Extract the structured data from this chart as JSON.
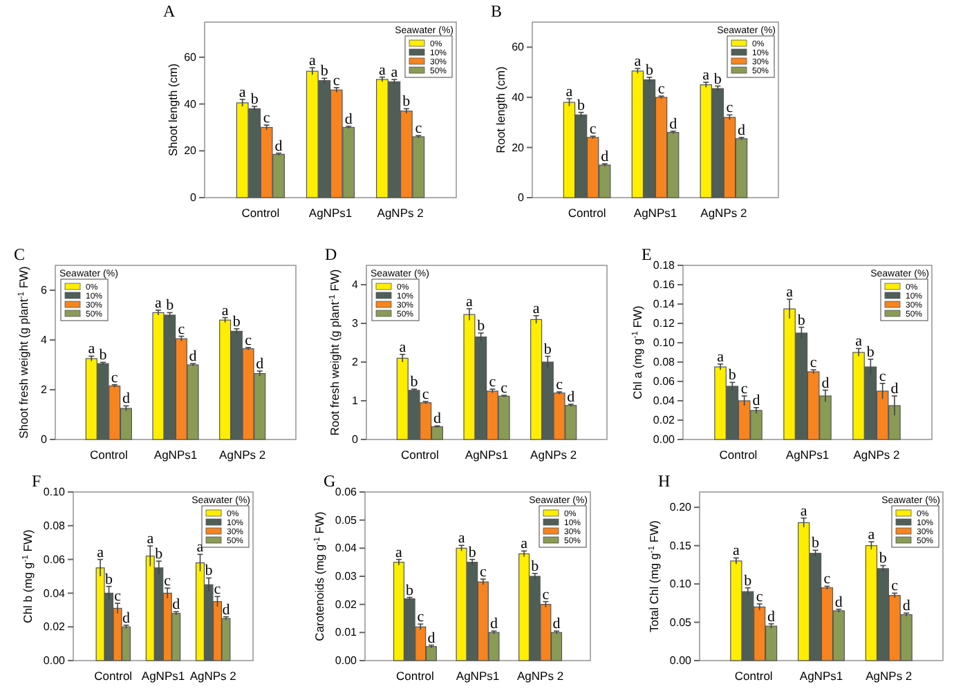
{
  "chart_data": [
    {
      "type": "bar",
      "title": "A",
      "ylabel": "Shoot length (cm)",
      "legend_title": "Seawater (%)",
      "legend": "top right",
      "categories": [
        "Control",
        "AgNPs1",
        "AgNPs 2"
      ],
      "ylim": [
        0,
        75
      ],
      "yticks": [
        0,
        20,
        40,
        60
      ],
      "series": [
        {
          "name": "0%",
          "color": "#ffee00",
          "values": [
            40.5,
            54,
            50.5
          ],
          "errors": [
            1.5,
            1.5,
            1
          ],
          "value_labels": [
            "a",
            "a",
            "a"
          ]
        },
        {
          "name": "10%",
          "color": "#4f5f58",
          "values": [
            38,
            50,
            49.5
          ],
          "errors": [
            1,
            1,
            1
          ],
          "value_labels": [
            "b",
            "b",
            "a"
          ]
        },
        {
          "name": "30%",
          "color": "#f7841f",
          "values": [
            30,
            46,
            37
          ],
          "errors": [
            1,
            1,
            1
          ],
          "value_labels": [
            "c",
            "c",
            "b"
          ]
        },
        {
          "name": "50%",
          "color": "#8a9b55",
          "values": [
            18.5,
            30,
            26
          ],
          "errors": [
            0.5,
            0.5,
            0.5
          ],
          "value_labels": [
            "d",
            "d",
            "c"
          ]
        }
      ]
    },
    {
      "type": "bar",
      "title": "B",
      "ylabel": "Root length (cm)",
      "legend_title": "Seawater (%)",
      "legend": "top right",
      "categories": [
        "Control",
        "AgNPs1",
        "AgNPs 2"
      ],
      "ylim": [
        0,
        70
      ],
      "yticks": [
        0,
        20,
        40,
        60
      ],
      "series": [
        {
          "name": "0%",
          "color": "#ffee00",
          "values": [
            38,
            50.5,
            45
          ],
          "errors": [
            1.5,
            1,
            1
          ],
          "value_labels": [
            "a",
            "a",
            "a"
          ]
        },
        {
          "name": "10%",
          "color": "#4f5f58",
          "values": [
            33,
            47,
            43.5
          ],
          "errors": [
            1,
            1,
            1
          ],
          "value_labels": [
            "b",
            "b",
            "b"
          ]
        },
        {
          "name": "30%",
          "color": "#f7841f",
          "values": [
            24,
            40,
            32
          ],
          "errors": [
            0.5,
            0.5,
            1
          ],
          "value_labels": [
            "c",
            "c",
            "c"
          ]
        },
        {
          "name": "50%",
          "color": "#8a9b55",
          "values": [
            13,
            26,
            23.5
          ],
          "errors": [
            0.5,
            0.5,
            0.5
          ],
          "value_labels": [
            "d",
            "d",
            "d"
          ]
        }
      ]
    },
    {
      "type": "bar",
      "title": "C",
      "ylabel": "Shoot fresh weight (g plant$^{-1}$ FW)",
      "legend_title": "Seawater (%)",
      "legend": "top left",
      "categories": [
        "Control",
        "AgNPs1",
        "AgNPs 2"
      ],
      "ylim": [
        0,
        7
      ],
      "yticks": [
        0,
        2,
        4,
        6
      ],
      "series": [
        {
          "name": "0%",
          "color": "#ffee00",
          "values": [
            3.25,
            5.1,
            4.8
          ],
          "errors": [
            0.1,
            0.1,
            0.1
          ],
          "value_labels": [
            "a",
            "a",
            "a"
          ]
        },
        {
          "name": "10%",
          "color": "#4f5f58",
          "values": [
            3.05,
            5.0,
            4.35
          ],
          "errors": [
            0.05,
            0.1,
            0.1
          ],
          "value_labels": [
            "b",
            "b",
            "b"
          ]
        },
        {
          "name": "30%",
          "color": "#f7841f",
          "values": [
            2.15,
            4.05,
            3.65
          ],
          "errors": [
            0.05,
            0.1,
            0.05
          ],
          "value_labels": [
            "c",
            "c",
            "c"
          ]
        },
        {
          "name": "50%",
          "color": "#8a9b55",
          "values": [
            1.25,
            3.0,
            2.65
          ],
          "errors": [
            0.1,
            0.05,
            0.1
          ],
          "value_labels": [
            "d",
            "d",
            "d"
          ]
        }
      ]
    },
    {
      "type": "bar",
      "title": "D",
      "ylabel": "Root fresh weight (g plant$^{-1}$ FW)",
      "legend_title": "Seawater (%)",
      "legend": "top left",
      "categories": [
        "Control",
        "AgNPs1",
        "AgNPs 2"
      ],
      "ylim": [
        0,
        4.5
      ],
      "yticks": [
        0,
        1,
        2,
        3,
        4
      ],
      "series": [
        {
          "name": "0%",
          "color": "#ffee00",
          "values": [
            2.1,
            3.23,
            3.1
          ],
          "errors": [
            0.1,
            0.15,
            0.1
          ],
          "value_labels": [
            "a",
            "a",
            "a"
          ]
        },
        {
          "name": "10%",
          "color": "#4f5f58",
          "values": [
            1.27,
            2.65,
            2.0
          ],
          "errors": [
            0.03,
            0.1,
            0.15
          ],
          "value_labels": [
            "b",
            "b",
            "b"
          ]
        },
        {
          "name": "30%",
          "color": "#f7841f",
          "values": [
            0.95,
            1.25,
            1.2
          ],
          "errors": [
            0.03,
            0.05,
            0.03
          ],
          "value_labels": [
            "c",
            "c",
            "c"
          ]
        },
        {
          "name": "50%",
          "color": "#8a9b55",
          "values": [
            0.33,
            1.12,
            0.88
          ],
          "errors": [
            0.02,
            0.02,
            0.03
          ],
          "value_labels": [
            "d",
            "c",
            "d"
          ]
        }
      ]
    },
    {
      "type": "bar",
      "title": "E",
      "ylabel": "Chl a (mg g$^{-1}$ FW)",
      "legend_title": "Seawater (%)",
      "legend": "top right",
      "categories": [
        "Control",
        "AgNPs1",
        "AgNPs 2"
      ],
      "ylim": [
        0,
        0.18
      ],
      "yticks": [
        {
          "value": 0,
          "label": "0.00"
        },
        {
          "value": 0.02,
          "label": "0.02"
        },
        {
          "value": 0.04,
          "label": "0.04"
        },
        {
          "value": 0.06,
          "label": "0.06"
        },
        {
          "value": 0.08,
          "label": "0.08"
        },
        {
          "value": 0.1,
          "label": "0.10"
        },
        {
          "value": 0.12,
          "label": "0.12"
        },
        {
          "value": 0.14,
          "label": "0.14"
        },
        {
          "value": 0.16,
          "label": "0.16"
        },
        {
          "value": 0.18,
          "label": "0.18"
        }
      ],
      "series": [
        {
          "name": "0%",
          "color": "#ffee00",
          "values": [
            0.075,
            0.135,
            0.09
          ],
          "errors": [
            0.003,
            0.01,
            0.004
          ],
          "value_labels": [
            "a",
            "a",
            "a"
          ]
        },
        {
          "name": "10%",
          "color": "#4f5f58",
          "values": [
            0.055,
            0.11,
            0.075
          ],
          "errors": [
            0.004,
            0.006,
            0.008
          ],
          "value_labels": [
            "b",
            "b",
            "b"
          ]
        },
        {
          "name": "30%",
          "color": "#f7841f",
          "values": [
            0.04,
            0.07,
            0.05
          ],
          "errors": [
            0.005,
            0.002,
            0.008
          ],
          "value_labels": [
            "c",
            "c",
            "c"
          ]
        },
        {
          "name": "50%",
          "color": "#8a9b55",
          "values": [
            0.03,
            0.045,
            0.035
          ],
          "errors": [
            0.003,
            0.006,
            0.01
          ],
          "value_labels": [
            "d",
            "d",
            "d"
          ]
        }
      ]
    },
    {
      "type": "bar",
      "title": "F",
      "ylabel": "Chl b (mg g$^{-1}$ FW)",
      "legend_title": "Seawater (%)",
      "legend": "top right",
      "categories": [
        "Control",
        "AgNPs1",
        "AgNPs 2"
      ],
      "ylim": [
        0,
        0.1
      ],
      "yticks": [
        {
          "value": 0,
          "label": "0.00"
        },
        {
          "value": 0.02,
          "label": "0.02"
        },
        {
          "value": 0.04,
          "label": "0.04"
        },
        {
          "value": 0.06,
          "label": "0.06"
        },
        {
          "value": 0.08,
          "label": "0.08"
        },
        {
          "value": 0.1,
          "label": "0.10"
        }
      ],
      "series": [
        {
          "name": "0%",
          "color": "#ffee00",
          "values": [
            0.055,
            0.062,
            0.058
          ],
          "errors": [
            0.005,
            0.006,
            0.005
          ],
          "value_labels": [
            "a",
            "a",
            "a"
          ]
        },
        {
          "name": "10%",
          "color": "#4f5f58",
          "values": [
            0.04,
            0.055,
            0.045
          ],
          "errors": [
            0.004,
            0.004,
            0.004
          ],
          "value_labels": [
            "b",
            "b",
            "b"
          ]
        },
        {
          "name": "30%",
          "color": "#f7841f",
          "values": [
            0.031,
            0.04,
            0.035
          ],
          "errors": [
            0.003,
            0.003,
            0.003
          ],
          "value_labels": [
            "c",
            "c",
            "c"
          ]
        },
        {
          "name": "50%",
          "color": "#8a9b55",
          "values": [
            0.02,
            0.028,
            0.025
          ],
          "errors": [
            0.001,
            0.001,
            0.001
          ],
          "value_labels": [
            "d",
            "d",
            "d"
          ]
        }
      ]
    },
    {
      "type": "bar",
      "title": "G",
      "ylabel": "Carotenoids (mg g$^{-1}$ FW)",
      "legend_title": "Seawater (%)",
      "legend": "top right",
      "categories": [
        "Control",
        "AgNPs1",
        "AgNPs 2"
      ],
      "ylim": [
        0,
        0.06
      ],
      "yticks": [
        {
          "value": 0,
          "label": "0.00"
        },
        {
          "value": 0.01,
          "label": "0.01"
        },
        {
          "value": 0.02,
          "label": "0.02"
        },
        {
          "value": 0.03,
          "label": "0.03"
        },
        {
          "value": 0.04,
          "label": "0.04"
        },
        {
          "value": 0.05,
          "label": "0.05"
        },
        {
          "value": 0.06,
          "label": "0.06"
        }
      ],
      "series": [
        {
          "name": "0%",
          "color": "#ffee00",
          "values": [
            0.035,
            0.04,
            0.038
          ],
          "errors": [
            0.001,
            0.001,
            0.001
          ],
          "value_labels": [
            "a",
            "a",
            "a"
          ]
        },
        {
          "name": "10%",
          "color": "#4f5f58",
          "values": [
            0.022,
            0.035,
            0.03
          ],
          "errors": [
            0.0005,
            0.001,
            0.001
          ],
          "value_labels": [
            "b",
            "b",
            "b"
          ]
        },
        {
          "name": "30%",
          "color": "#f7841f",
          "values": [
            0.012,
            0.028,
            0.02
          ],
          "errors": [
            0.001,
            0.001,
            0.001
          ],
          "value_labels": [
            "c",
            "c",
            "c"
          ]
        },
        {
          "name": "50%",
          "color": "#8a9b55",
          "values": [
            0.005,
            0.01,
            0.01
          ],
          "errors": [
            0.0005,
            0.0005,
            0.0005
          ],
          "value_labels": [
            "d",
            "d",
            "d"
          ]
        }
      ]
    },
    {
      "type": "bar",
      "title": "H",
      "ylabel": "Total Chl (mg g$^{-1}$ FW)",
      "legend_title": "Seawater (%)",
      "legend": "top right",
      "categories": [
        "Control",
        "AgNPs1",
        "AgNPs 2"
      ],
      "ylim": [
        0,
        0.22
      ],
      "yticks": [
        {
          "value": 0,
          "label": "0.00"
        },
        {
          "value": 0.05,
          "label": "0.05"
        },
        {
          "value": 0.1,
          "label": "0.10"
        },
        {
          "value": 0.15,
          "label": "0.15"
        },
        {
          "value": 0.2,
          "label": "0.20"
        }
      ],
      "series": [
        {
          "name": "0%",
          "color": "#ffee00",
          "values": [
            0.13,
            0.18,
            0.15
          ],
          "errors": [
            0.004,
            0.006,
            0.005
          ],
          "value_labels": [
            "a",
            "a",
            "a"
          ]
        },
        {
          "name": "10%",
          "color": "#4f5f58",
          "values": [
            0.09,
            0.14,
            0.12
          ],
          "errors": [
            0.005,
            0.004,
            0.004
          ],
          "value_labels": [
            "b",
            "b",
            "b"
          ]
        },
        {
          "name": "30%",
          "color": "#f7841f",
          "values": [
            0.07,
            0.095,
            0.085
          ],
          "errors": [
            0.004,
            0.002,
            0.003
          ],
          "value_labels": [
            "c",
            "c",
            "c"
          ]
        },
        {
          "name": "50%",
          "color": "#8a9b55",
          "values": [
            0.045,
            0.065,
            0.06
          ],
          "errors": [
            0.003,
            0.002,
            0.002
          ],
          "value_labels": [
            "d",
            "d",
            "d"
          ]
        }
      ]
    }
  ]
}
